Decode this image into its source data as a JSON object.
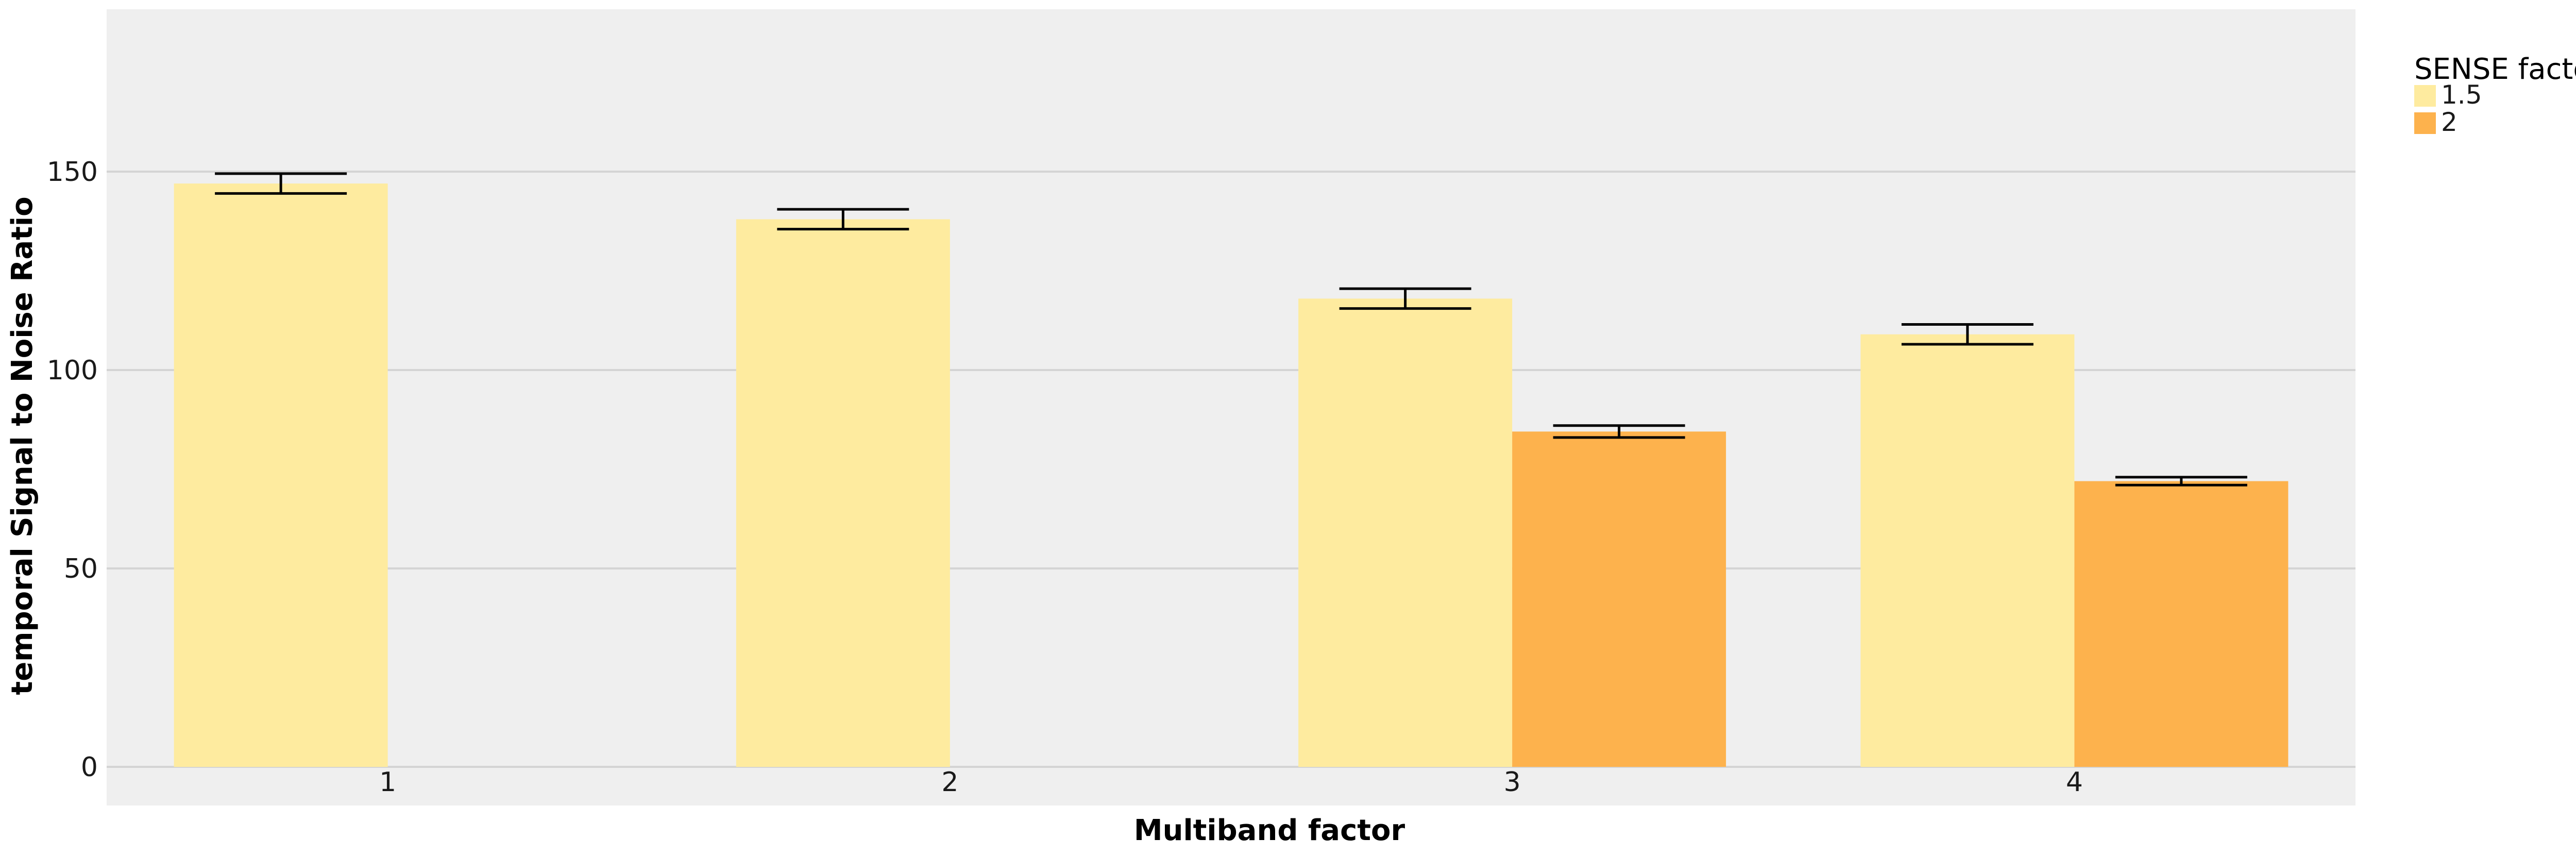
{
  "chart_data": {
    "type": "bar",
    "title": "",
    "xlabel": "Multiband factor",
    "ylabel": "temporal Signal to Noise Ratio",
    "categories": [
      "1",
      "2",
      "3",
      "4"
    ],
    "ylim": [
      0,
      190
    ],
    "yticks": [
      0,
      50,
      100,
      150
    ],
    "grid": true,
    "legend": {
      "title": "SENSE factor",
      "position": "right"
    },
    "series": [
      {
        "name": "1.5",
        "color": "#feeb9f",
        "values": [
          147,
          138,
          118,
          109
        ],
        "error_low": [
          144.5,
          135.5,
          115.5,
          106.5
        ],
        "error_high": [
          149.5,
          140.5,
          120.5,
          111.5
        ]
      },
      {
        "name": "2",
        "color": "#fdb24d",
        "values": [
          null,
          null,
          84.5,
          72
        ],
        "error_low": [
          null,
          null,
          83,
          71
        ],
        "error_high": [
          null,
          null,
          86,
          73
        ]
      }
    ],
    "colors": {
      "panel_background": "#efefef",
      "gridline": "#d4d4d4",
      "error_bar": "#000000"
    }
  }
}
